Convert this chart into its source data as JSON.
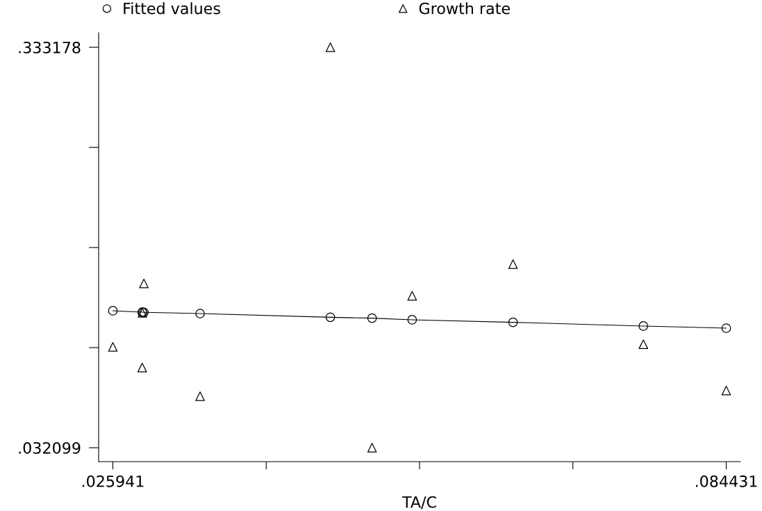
{
  "chart_data": {
    "type": "scatter",
    "xlabel": "TA/C",
    "legend": "top",
    "xlim": [
      0.024584,
      0.085788
    ],
    "ylim": [
      0.021645,
      0.344155
    ],
    "xticks": [
      {
        "value": 0.025941,
        "label": ".025941"
      },
      {
        "value": 0.0405635,
        "label": null
      },
      {
        "value": 0.055186,
        "label": null
      },
      {
        "value": 0.0698085,
        "label": null
      },
      {
        "value": 0.084431,
        "label": ".084431"
      }
    ],
    "yticks": [
      {
        "value": 0.032099,
        "label": ".032099"
      },
      {
        "value": 0.107369,
        "label": null
      },
      {
        "value": 0.182639,
        "label": null
      },
      {
        "value": 0.257908,
        "label": null
      },
      {
        "value": 0.333178,
        "label": ".333178"
      }
    ],
    "series": [
      {
        "name": "Fitted values",
        "type": "line",
        "marker": "circle",
        "line_style": "solid",
        "color": "#000000",
        "x": [
          0.025941,
          0.02874,
          0.02876,
          0.0289,
          0.03426,
          0.04668,
          0.05066,
          0.05448,
          0.0641,
          0.07653,
          0.084431
        ],
        "values": [
          0.1351,
          0.134,
          0.134,
          0.1339,
          0.133,
          0.1302,
          0.1295,
          0.1283,
          0.1264,
          0.1236,
          0.122
        ]
      },
      {
        "name": "Growth rate",
        "marker": "triangle",
        "color": "#000000",
        "x": [
          0.025941,
          0.02874,
          0.02876,
          0.0289,
          0.03426,
          0.04668,
          0.05066,
          0.05448,
          0.0641,
          0.07653,
          0.084431
        ],
        "values": [
          0.1079,
          0.0924,
          0.1335,
          0.1556,
          0.0708,
          0.3332,
          0.0321,
          0.1463,
          0.1701,
          0.1099,
          0.0751
        ]
      }
    ]
  }
}
